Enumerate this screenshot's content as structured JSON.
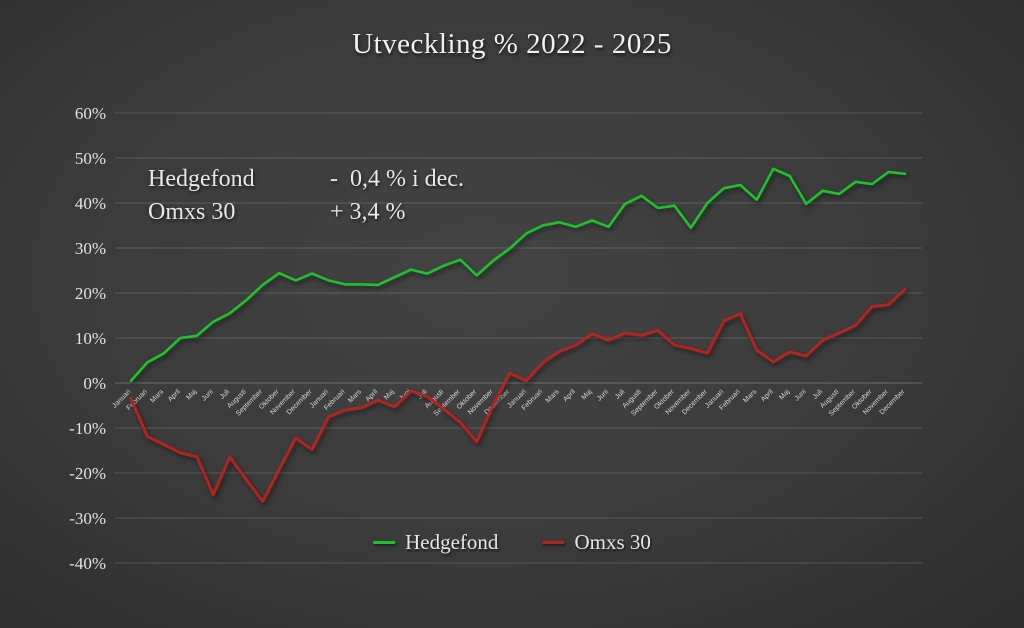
{
  "slide": {
    "title": "Utveckling % 2022 - 2025",
    "annotation": {
      "rows": [
        {
          "name": "Hedgefond",
          "value": "-  0,4 % i dec."
        },
        {
          "name": "Omxs 30",
          "value": "+ 3,4 %"
        }
      ]
    }
  },
  "colors": {
    "background": "#3a3a3a",
    "hedgefond_green": "#1ec32b",
    "omxs_red": "#b32421",
    "text": "#e8e8e8"
  },
  "chart_data": {
    "type": "line",
    "title": "Utveckling % 2022 - 2025",
    "x_range_years": "2022-2025",
    "x_months": [
      "Januari",
      "Februari",
      "Mars",
      "April",
      "Maj",
      "Juni",
      "Juli",
      "Augusti",
      "September",
      "Oktober",
      "November",
      "December"
    ],
    "x_label_repeats": 4,
    "ylim": [
      -40,
      60
    ],
    "y_tick_values": [
      60,
      50,
      40,
      30,
      20,
      10,
      0,
      -10,
      -20,
      -30,
      -40
    ],
    "y_ticks": [
      "60%",
      "50%",
      "40%",
      "30%",
      "20%",
      "10%",
      "0%",
      "-10%",
      "-20%",
      "-30%",
      "-40%"
    ],
    "grid": true,
    "legend_position": "bottom",
    "series": [
      {
        "name": "Hedgefond",
        "color": "#1ec32b",
        "width": 2.6,
        "values": [
          0.5,
          4.6,
          6.6,
          10.0,
          10.5,
          13.6,
          15.5,
          18.4,
          21.8,
          24.4,
          22.8,
          24.3,
          22.8,
          21.9,
          21.9,
          21.8,
          23.5,
          25.2,
          24.3,
          26.1,
          27.4,
          23.9,
          27.2,
          29.9,
          33.2,
          35.0,
          35.7,
          34.7,
          36.1,
          34.7,
          39.8,
          41.6,
          38.9,
          39.4,
          34.5,
          40.0,
          43.3,
          44.0,
          40.7,
          47.6,
          46.0,
          39.8,
          42.7,
          42.0,
          44.7,
          44.2,
          46.9,
          46.5
        ]
      },
      {
        "name": "Omxs 30",
        "color": "#b32421",
        "width": 3,
        "values": [
          -3.5,
          -11.9,
          -13.7,
          -15.5,
          -16.4,
          -24.8,
          -16.4,
          -21.5,
          -26.3,
          -19.2,
          -12.2,
          -14.8,
          -7.5,
          -6.0,
          -5.5,
          -3.8,
          -5.3,
          -1.8,
          -3.0,
          -5.8,
          -8.8,
          -13.1,
          -4.8,
          2.2,
          0.5,
          4.5,
          7.0,
          8.4,
          10.9,
          9.5,
          11.1,
          10.6,
          11.7,
          8.4,
          7.7,
          6.6,
          13.8,
          15.4,
          7.3,
          4.7,
          6.9,
          6.0,
          9.5,
          11.1,
          12.8,
          17.0,
          17.4,
          20.8
        ]
      }
    ]
  }
}
